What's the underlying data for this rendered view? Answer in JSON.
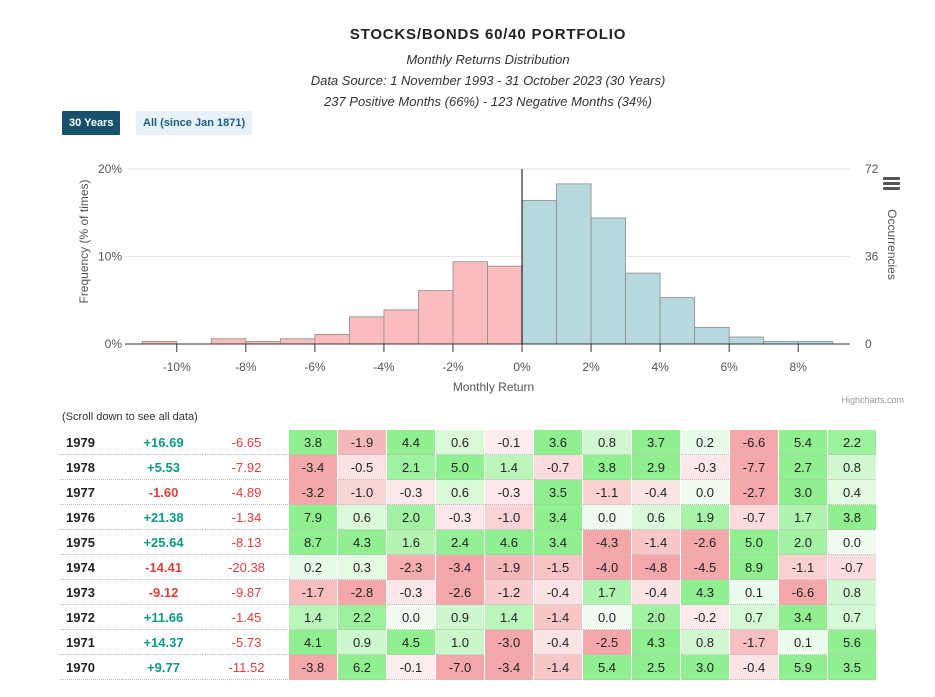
{
  "header": {
    "title": "STOCKS/BONDS 60/40 PORTFOLIO",
    "subtitle1": "Monthly Returns Distribution",
    "subtitle2": "Data Source: 1 November 1993 - 31 October 2023 (30 Years)",
    "subtitle3": "237 Positive Months (66%) - 123 Negative Months (34%)"
  },
  "buttons": {
    "active": "30 Years",
    "inactive": "All (since Jan 1871)"
  },
  "chart_data": {
    "type": "bar",
    "x": [
      -10.5,
      -9.5,
      -8.5,
      -7.5,
      -6.5,
      -5.5,
      -4.5,
      -3.5,
      -2.5,
      -1.5,
      -0.5,
      0.5,
      1.5,
      2.5,
      3.5,
      4.5,
      5.5,
      6.5,
      7.5,
      8.5
    ],
    "values": [
      0.3,
      0,
      0.6,
      0.3,
      0.6,
      1.1,
      3.1,
      3.9,
      6.1,
      9.4,
      8.9,
      16.4,
      18.3,
      14.4,
      8.1,
      5.3,
      1.9,
      0.8,
      0.3,
      0.3
    ],
    "colors": {
      "negative": "#fbbcbd",
      "positive": "#b7d9de",
      "stroke": "#8c8c8c"
    },
    "xlabel": "Monthly Return",
    "ylabel": "Frequency (% of times)",
    "y2label": "Occurrencies",
    "xlim": [
      -11.5,
      9.5
    ],
    "ylim": [
      0,
      20
    ],
    "y2lim": [
      0,
      72
    ],
    "xticks": [
      -10,
      -8,
      -6,
      -4,
      -2,
      0,
      2,
      4,
      6,
      8
    ],
    "xtick_labels": [
      "-10%",
      "-8%",
      "-6%",
      "-4%",
      "-2%",
      "0%",
      "2%",
      "4%",
      "6%",
      "8%"
    ],
    "yticks": [
      0,
      10,
      20
    ],
    "ytick_labels": [
      "0%",
      "10%",
      "20%"
    ],
    "y2ticks": [
      0,
      36,
      72
    ],
    "y2tick_labels": [
      "0",
      "36",
      "72"
    ],
    "grid": true
  },
  "credits": "Highcharts.com",
  "scroll_note": "(Scroll down to see all data)",
  "table": {
    "rows": [
      {
        "year": "1979",
        "annual": "+16.69",
        "drawdown": "-6.65",
        "months": [
          "3.8",
          "-1.9",
          "4.4",
          "0.6",
          "-0.1",
          "3.6",
          "0.8",
          "3.7",
          "0.2",
          "-6.6",
          "5.4",
          "2.2"
        ]
      },
      {
        "year": "1978",
        "annual": "+5.53",
        "drawdown": "-7.92",
        "months": [
          "-3.4",
          "-0.5",
          "2.1",
          "5.0",
          "1.4",
          "-0.7",
          "3.8",
          "2.9",
          "-0.3",
          "-7.7",
          "2.7",
          "0.8"
        ]
      },
      {
        "year": "1977",
        "annual": "-1.60",
        "drawdown": "-4.89",
        "months": [
          "-3.2",
          "-1.0",
          "-0.3",
          "0.6",
          "-0.3",
          "3.5",
          "-1.1",
          "-0.4",
          "0.0",
          "-2.7",
          "3.0",
          "0.4"
        ]
      },
      {
        "year": "1976",
        "annual": "+21.38",
        "drawdown": "-1.34",
        "months": [
          "7.9",
          "0.6",
          "2.0",
          "-0.3",
          "-1.0",
          "3.4",
          "0.0",
          "0.6",
          "1.9",
          "-0.7",
          "1.7",
          "3.8"
        ]
      },
      {
        "year": "1975",
        "annual": "+25.64",
        "drawdown": "-8.13",
        "months": [
          "8.7",
          "4.3",
          "1.6",
          "2.4",
          "4.6",
          "3.4",
          "-4.3",
          "-1.4",
          "-2.6",
          "5.0",
          "2.0",
          "0.0"
        ]
      },
      {
        "year": "1974",
        "annual": "-14.41",
        "drawdown": "-20.38",
        "months": [
          "0.2",
          "0.3",
          "-2.3",
          "-3.4",
          "-1.9",
          "-1.5",
          "-4.0",
          "-4.8",
          "-4.5",
          "8.9",
          "-1.1",
          "-0.7"
        ]
      },
      {
        "year": "1973",
        "annual": "-9.12",
        "drawdown": "-9.87",
        "months": [
          "-1.7",
          "-2.8",
          "-0.3",
          "-2.6",
          "-1.2",
          "-0.4",
          "1.7",
          "-0.4",
          "4.3",
          "0.1",
          "-6.6",
          "0.8"
        ]
      },
      {
        "year": "1972",
        "annual": "+11.66",
        "drawdown": "-1.45",
        "months": [
          "1.4",
          "2.2",
          "0.0",
          "0.9",
          "1.4",
          "-1.4",
          "0.0",
          "2.0",
          "-0.2",
          "0.7",
          "3.4",
          "0.7"
        ]
      },
      {
        "year": "1971",
        "annual": "+14.37",
        "drawdown": "-5.73",
        "months": [
          "4.1",
          "0.9",
          "4.5",
          "1.0",
          "-3.0",
          "-0.4",
          "-2.5",
          "4.3",
          "0.8",
          "-1.7",
          "0.1",
          "5.6"
        ]
      },
      {
        "year": "1970",
        "annual": "+9.77",
        "drawdown": "-11.52",
        "months": [
          "-3.8",
          "6.2",
          "-0.1",
          "-7.0",
          "-3.4",
          "-1.4",
          "5.4",
          "2.5",
          "3.0",
          "-0.4",
          "5.9",
          "3.5"
        ]
      }
    ]
  }
}
